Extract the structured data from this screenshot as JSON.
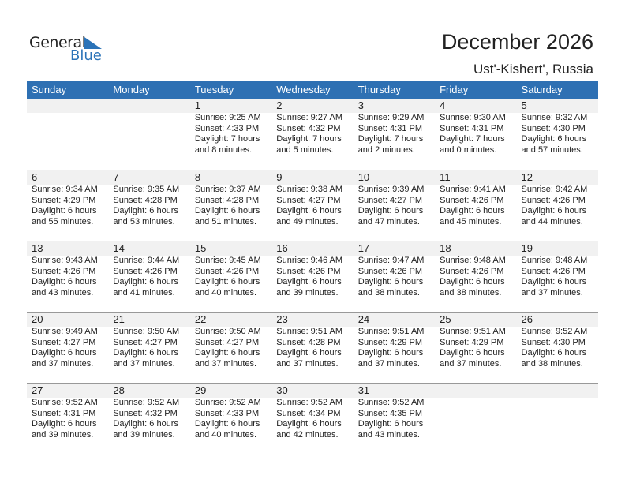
{
  "logo": {
    "word1": "General",
    "word2": "Blue",
    "color": "#2b73b8"
  },
  "header": {
    "title": "December 2026",
    "location": "Ust'-Kishert', Russia"
  },
  "weekdays": [
    "Sunday",
    "Monday",
    "Tuesday",
    "Wednesday",
    "Thursday",
    "Friday",
    "Saturday"
  ],
  "colors": {
    "header_bg": "#2e70b3",
    "date_band": "#f1f1f1"
  },
  "weeks": [
    [
      null,
      null,
      {
        "day": "1",
        "sunrise": "Sunrise: 9:25 AM",
        "sunset": "Sunset: 4:33 PM",
        "daylight": "Daylight: 7 hours",
        "daylight2": "and 8 minutes."
      },
      {
        "day": "2",
        "sunrise": "Sunrise: 9:27 AM",
        "sunset": "Sunset: 4:32 PM",
        "daylight": "Daylight: 7 hours",
        "daylight2": "and 5 minutes."
      },
      {
        "day": "3",
        "sunrise": "Sunrise: 9:29 AM",
        "sunset": "Sunset: 4:31 PM",
        "daylight": "Daylight: 7 hours",
        "daylight2": "and 2 minutes."
      },
      {
        "day": "4",
        "sunrise": "Sunrise: 9:30 AM",
        "sunset": "Sunset: 4:31 PM",
        "daylight": "Daylight: 7 hours",
        "daylight2": "and 0 minutes."
      },
      {
        "day": "5",
        "sunrise": "Sunrise: 9:32 AM",
        "sunset": "Sunset: 4:30 PM",
        "daylight": "Daylight: 6 hours",
        "daylight2": "and 57 minutes."
      }
    ],
    [
      {
        "day": "6",
        "sunrise": "Sunrise: 9:34 AM",
        "sunset": "Sunset: 4:29 PM",
        "daylight": "Daylight: 6 hours",
        "daylight2": "and 55 minutes."
      },
      {
        "day": "7",
        "sunrise": "Sunrise: 9:35 AM",
        "sunset": "Sunset: 4:28 PM",
        "daylight": "Daylight: 6 hours",
        "daylight2": "and 53 minutes."
      },
      {
        "day": "8",
        "sunrise": "Sunrise: 9:37 AM",
        "sunset": "Sunset: 4:28 PM",
        "daylight": "Daylight: 6 hours",
        "daylight2": "and 51 minutes."
      },
      {
        "day": "9",
        "sunrise": "Sunrise: 9:38 AM",
        "sunset": "Sunset: 4:27 PM",
        "daylight": "Daylight: 6 hours",
        "daylight2": "and 49 minutes."
      },
      {
        "day": "10",
        "sunrise": "Sunrise: 9:39 AM",
        "sunset": "Sunset: 4:27 PM",
        "daylight": "Daylight: 6 hours",
        "daylight2": "and 47 minutes."
      },
      {
        "day": "11",
        "sunrise": "Sunrise: 9:41 AM",
        "sunset": "Sunset: 4:26 PM",
        "daylight": "Daylight: 6 hours",
        "daylight2": "and 45 minutes."
      },
      {
        "day": "12",
        "sunrise": "Sunrise: 9:42 AM",
        "sunset": "Sunset: 4:26 PM",
        "daylight": "Daylight: 6 hours",
        "daylight2": "and 44 minutes."
      }
    ],
    [
      {
        "day": "13",
        "sunrise": "Sunrise: 9:43 AM",
        "sunset": "Sunset: 4:26 PM",
        "daylight": "Daylight: 6 hours",
        "daylight2": "and 43 minutes."
      },
      {
        "day": "14",
        "sunrise": "Sunrise: 9:44 AM",
        "sunset": "Sunset: 4:26 PM",
        "daylight": "Daylight: 6 hours",
        "daylight2": "and 41 minutes."
      },
      {
        "day": "15",
        "sunrise": "Sunrise: 9:45 AM",
        "sunset": "Sunset: 4:26 PM",
        "daylight": "Daylight: 6 hours",
        "daylight2": "and 40 minutes."
      },
      {
        "day": "16",
        "sunrise": "Sunrise: 9:46 AM",
        "sunset": "Sunset: 4:26 PM",
        "daylight": "Daylight: 6 hours",
        "daylight2": "and 39 minutes."
      },
      {
        "day": "17",
        "sunrise": "Sunrise: 9:47 AM",
        "sunset": "Sunset: 4:26 PM",
        "daylight": "Daylight: 6 hours",
        "daylight2": "and 38 minutes."
      },
      {
        "day": "18",
        "sunrise": "Sunrise: 9:48 AM",
        "sunset": "Sunset: 4:26 PM",
        "daylight": "Daylight: 6 hours",
        "daylight2": "and 38 minutes."
      },
      {
        "day": "19",
        "sunrise": "Sunrise: 9:48 AM",
        "sunset": "Sunset: 4:26 PM",
        "daylight": "Daylight: 6 hours",
        "daylight2": "and 37 minutes."
      }
    ],
    [
      {
        "day": "20",
        "sunrise": "Sunrise: 9:49 AM",
        "sunset": "Sunset: 4:27 PM",
        "daylight": "Daylight: 6 hours",
        "daylight2": "and 37 minutes."
      },
      {
        "day": "21",
        "sunrise": "Sunrise: 9:50 AM",
        "sunset": "Sunset: 4:27 PM",
        "daylight": "Daylight: 6 hours",
        "daylight2": "and 37 minutes."
      },
      {
        "day": "22",
        "sunrise": "Sunrise: 9:50 AM",
        "sunset": "Sunset: 4:27 PM",
        "daylight": "Daylight: 6 hours",
        "daylight2": "and 37 minutes."
      },
      {
        "day": "23",
        "sunrise": "Sunrise: 9:51 AM",
        "sunset": "Sunset: 4:28 PM",
        "daylight": "Daylight: 6 hours",
        "daylight2": "and 37 minutes."
      },
      {
        "day": "24",
        "sunrise": "Sunrise: 9:51 AM",
        "sunset": "Sunset: 4:29 PM",
        "daylight": "Daylight: 6 hours",
        "daylight2": "and 37 minutes."
      },
      {
        "day": "25",
        "sunrise": "Sunrise: 9:51 AM",
        "sunset": "Sunset: 4:29 PM",
        "daylight": "Daylight: 6 hours",
        "daylight2": "and 37 minutes."
      },
      {
        "day": "26",
        "sunrise": "Sunrise: 9:52 AM",
        "sunset": "Sunset: 4:30 PM",
        "daylight": "Daylight: 6 hours",
        "daylight2": "and 38 minutes."
      }
    ],
    [
      {
        "day": "27",
        "sunrise": "Sunrise: 9:52 AM",
        "sunset": "Sunset: 4:31 PM",
        "daylight": "Daylight: 6 hours",
        "daylight2": "and 39 minutes."
      },
      {
        "day": "28",
        "sunrise": "Sunrise: 9:52 AM",
        "sunset": "Sunset: 4:32 PM",
        "daylight": "Daylight: 6 hours",
        "daylight2": "and 39 minutes."
      },
      {
        "day": "29",
        "sunrise": "Sunrise: 9:52 AM",
        "sunset": "Sunset: 4:33 PM",
        "daylight": "Daylight: 6 hours",
        "daylight2": "and 40 minutes."
      },
      {
        "day": "30",
        "sunrise": "Sunrise: 9:52 AM",
        "sunset": "Sunset: 4:34 PM",
        "daylight": "Daylight: 6 hours",
        "daylight2": "and 42 minutes."
      },
      {
        "day": "31",
        "sunrise": "Sunrise: 9:52 AM",
        "sunset": "Sunset: 4:35 PM",
        "daylight": "Daylight: 6 hours",
        "daylight2": "and 43 minutes."
      },
      null,
      null
    ]
  ]
}
